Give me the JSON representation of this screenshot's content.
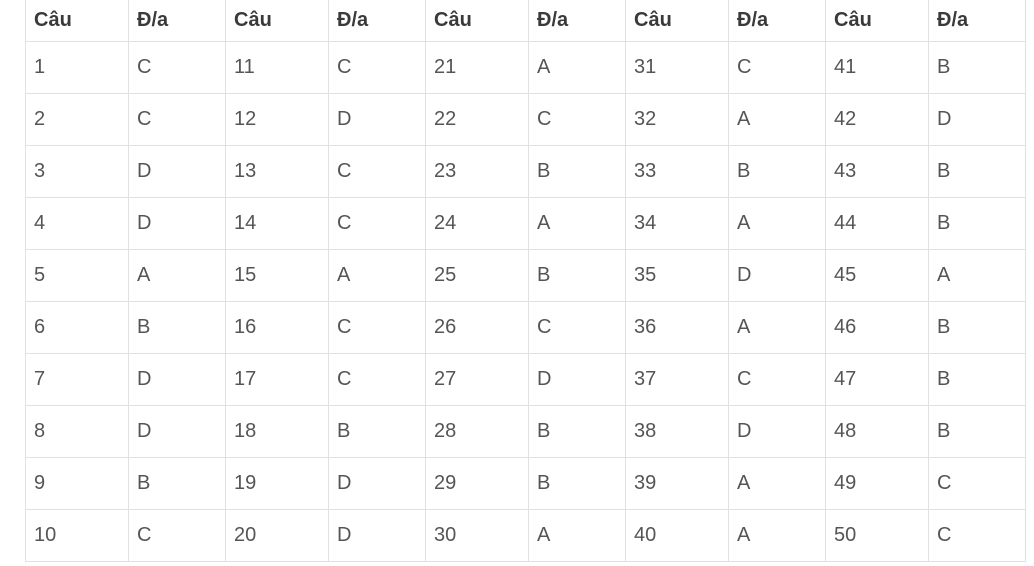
{
  "table": {
    "headers": [
      "Câu",
      "Đ/a",
      "Câu",
      "Đ/a",
      "Câu",
      "Đ/a",
      "Câu",
      "Đ/a",
      "Câu",
      "Đ/a"
    ],
    "rows": [
      [
        "1",
        "C",
        "11",
        "C",
        "21",
        "A",
        "31",
        "C",
        "41",
        "B"
      ],
      [
        "2",
        "C",
        "12",
        "D",
        "22",
        "C",
        "32",
        "A",
        "42",
        "D"
      ],
      [
        "3",
        "D",
        "13",
        "C",
        "23",
        "B",
        "33",
        "B",
        "43",
        "B"
      ],
      [
        "4",
        "D",
        "14",
        "C",
        "24",
        "A",
        "34",
        "A",
        "44",
        "B"
      ],
      [
        "5",
        "A",
        "15",
        "A",
        "25",
        "B",
        "35",
        "D",
        "45",
        "A"
      ],
      [
        "6",
        "B",
        "16",
        "C",
        "26",
        "C",
        "36",
        "A",
        "46",
        "B"
      ],
      [
        "7",
        "D",
        "17",
        "C",
        "27",
        "D",
        "37",
        "C",
        "47",
        "B"
      ],
      [
        "8",
        "D",
        "18",
        "B",
        "28",
        "B",
        "38",
        "D",
        "48",
        "B"
      ],
      [
        "9",
        "B",
        "19",
        "D",
        "29",
        "B",
        "39",
        "A",
        "49",
        "C"
      ],
      [
        "10",
        "C",
        "20",
        "D",
        "30",
        "A",
        "40",
        "A",
        "50",
        "C"
      ]
    ]
  }
}
